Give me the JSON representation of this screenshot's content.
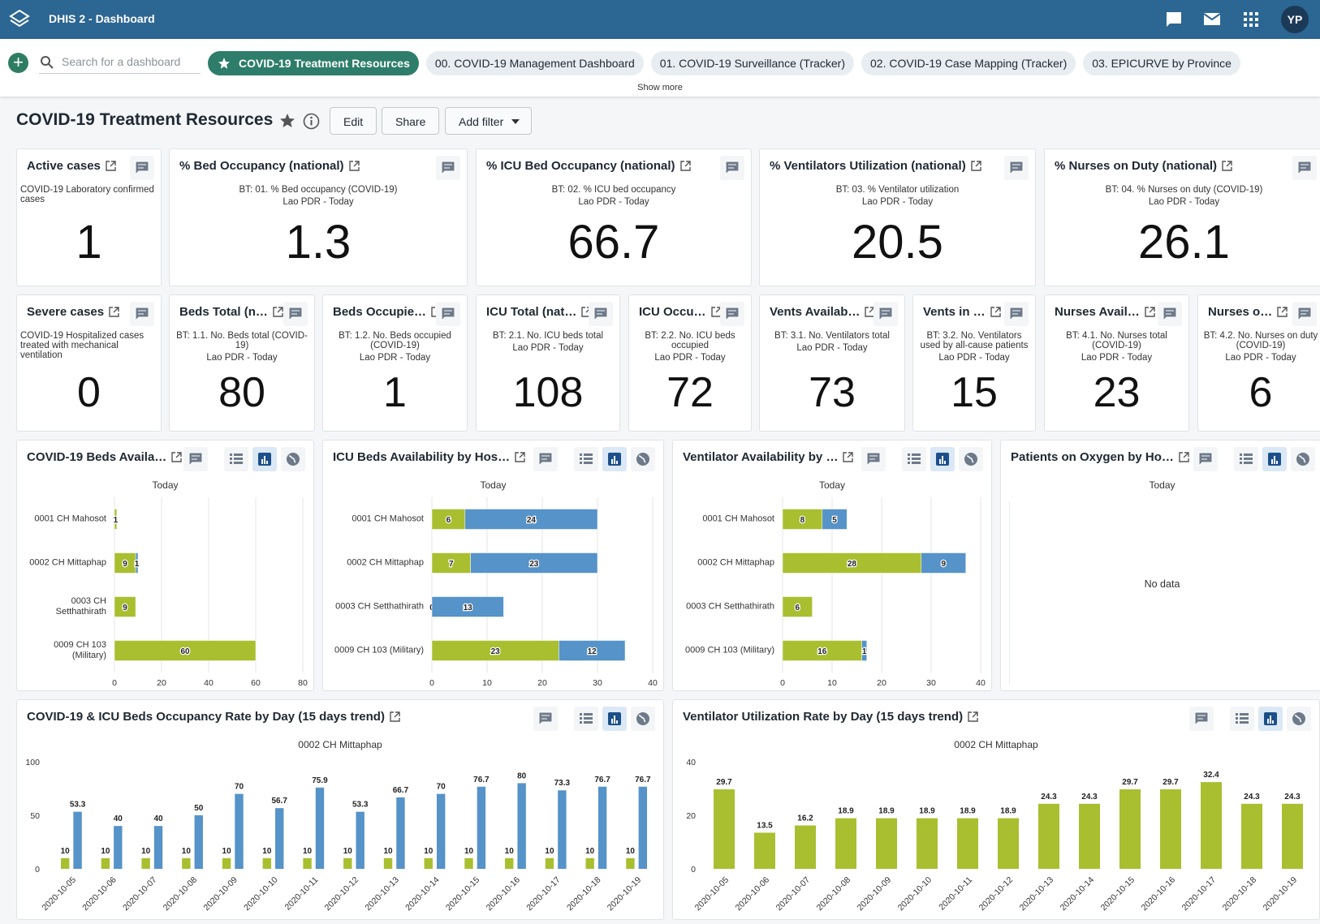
{
  "header": {
    "app_title": "DHIS 2 - Dashboard",
    "user_initials": "YP"
  },
  "dashboard_bar": {
    "search_placeholder": "Search for a dashboard",
    "dashboards": [
      "COVID-19 Treatment Resources",
      "00. COVID-19 Management Dashboard",
      "01. COVID-19 Surveillance (Tracker)",
      "02. COVID-19 Case Mapping (Tracker)",
      "03. EPICURVE by Province"
    ],
    "show_more": "Show more"
  },
  "title_bar": {
    "title": "COVID-19 Treatment Resources",
    "buttons": [
      "Edit",
      "Share",
      "Add filter"
    ]
  },
  "single_values": [
    {
      "title": "Active cases",
      "description": "COVID-19 Laboratory confirmed cases",
      "value": 1
    },
    {
      "title": "% Bed Occupancy (national)",
      "description": "BT: 01. % Bed occupancy (COVID-19)",
      "period": "Lao PDR - Today",
      "value": 1.3
    },
    {
      "title": "% ICU Bed Occupancy (national)",
      "description": "BT: 02. % ICU bed occupancy",
      "period": "Lao PDR - Today",
      "value": 66.7
    },
    {
      "title": "% Ventilators Utilization (national)",
      "description": "BT: 03. % Ventilator utilization",
      "period": "Lao PDR - Today",
      "value": 20.5
    },
    {
      "title": "% Nurses on Duty (national)",
      "description": "BT: 04. % Nurses on duty (COVID-19)",
      "period": "Lao PDR - Today",
      "value": 26.1
    },
    {
      "title": "Severe cases",
      "description": "COVID-19 Hospitalized cases treated with mechanical ventilation",
      "value": 0
    },
    {
      "title": "Beds Total (n…",
      "description": "BT: 1.1. No. Beds total (COVID-19)",
      "period": "Lao PDR - Today",
      "value": 80
    },
    {
      "title": "Beds Occupie…",
      "description": "BT: 1.2. No. Beds occupied (COVID-19)",
      "period": "Lao PDR - Today",
      "value": 1
    },
    {
      "title": "ICU Total (nat…",
      "description": "BT: 2.1. No. ICU beds total",
      "period": "Lao PDR - Today",
      "value": 108
    },
    {
      "title": "ICU Occu…",
      "description": "BT: 2.2. No. ICU beds occupied",
      "period": "Lao PDR - Today",
      "value": 72
    },
    {
      "title": "Vents Availab…",
      "description": "BT: 3.1. No. Ventilators total",
      "period": "Lao PDR - Today",
      "value": 73
    },
    {
      "title": "Vents in …",
      "description": "BT: 3.2. No. Ventilators used by all-cause patients",
      "period": "Lao PDR - Today",
      "value": 15
    },
    {
      "title": "Nurses Avail…",
      "description": "BT: 4.1. No. Nurses total (COVID-19)",
      "period": "Lao PDR - Today",
      "value": 23
    },
    {
      "title": "Nurses o…",
      "description": "BT: 4.2. No. Nurses on duty (COVID-19)",
      "period": "Lao PDR - Today",
      "value": 6
    }
  ],
  "bar_charts": [
    {
      "title": "COVID-19 Beds Availa…",
      "subtitle": "Today",
      "chart": {
        "type": "bar",
        "categories": [
          "0001 CH Mahosot",
          "0002 CH Mittaphap",
          "0003 CH Setthathirath",
          "0009 CH 103 (Military)"
        ],
        "series": [
          {
            "color": "#a9bf2f",
            "values": [
              1,
              9,
              9,
              60
            ]
          },
          {
            "color": "#5593c9",
            "values": [
              null,
              1,
              null,
              null
            ]
          }
        ],
        "xlim": [
          0,
          80
        ],
        "xticks": [
          0,
          20,
          40,
          60,
          80
        ],
        "grid": true
      }
    },
    {
      "title": "ICU Beds Availability by Hos…",
      "subtitle": "Today",
      "chart": {
        "type": "bar",
        "categories": [
          "0001 CH Mahosot",
          "0002 CH Mittaphap",
          "0003 CH Setthathirath",
          "0009 CH 103 (Military)"
        ],
        "series": [
          {
            "color": "#a9bf2f",
            "values": [
              6,
              7,
              0,
              23
            ]
          },
          {
            "color": "#5593c9",
            "values": [
              24,
              23,
              13,
              12
            ]
          }
        ],
        "xlim": [
          0,
          40
        ],
        "xticks": [
          0,
          10,
          20,
          30,
          40
        ],
        "grid": true
      }
    },
    {
      "title": "Ventilator Availability by …",
      "subtitle": "Today",
      "chart": {
        "type": "bar",
        "categories": [
          "0001 CH Mahosot",
          "0002 CH Mittaphap",
          "0003 CH Setthathirath",
          "0009 CH 103 (Military)"
        ],
        "series": [
          {
            "color": "#a9bf2f",
            "values": [
              8,
              28,
              6,
              16
            ]
          },
          {
            "color": "#5593c9",
            "values": [
              5,
              9,
              null,
              1
            ]
          }
        ],
        "xlim": [
          0,
          40
        ],
        "xticks": [
          0,
          10,
          20,
          30,
          40
        ],
        "grid": true
      }
    },
    {
      "title": "Patients on Oxygen by Ho…",
      "subtitle": "Today",
      "no_data": "No data"
    }
  ],
  "trend_charts": [
    {
      "title": "COVID-19 & ICU Beds Occupancy Rate by Day (15 days trend)",
      "subtitle": "0002 CH Mittaphap",
      "chart": {
        "type": "column",
        "categories": [
          "2020-10-05",
          "2020-10-06",
          "2020-10-07",
          "2020-10-08",
          "2020-10-09",
          "2020-10-10",
          "2020-10-11",
          "2020-10-12",
          "2020-10-13",
          "2020-10-14",
          "2020-10-15",
          "2020-10-16",
          "2020-10-17",
          "2020-10-18",
          "2020-10-19"
        ],
        "series": [
          {
            "color": "#a9bf2f",
            "values": [
              10,
              10,
              10,
              10,
              10,
              10,
              10,
              10,
              10,
              10,
              10,
              10,
              10,
              10,
              10
            ]
          },
          {
            "color": "#5593c9",
            "values": [
              53.3,
              40,
              40,
              50,
              70,
              56.7,
              75.9,
              53.3,
              66.7,
              70,
              76.7,
              80,
              73.3,
              76.7,
              76.7
            ]
          }
        ],
        "ylim": [
          0,
          100
        ],
        "yticks": [
          0,
          50,
          100
        ],
        "grid": false
      }
    },
    {
      "title": "Ventilator Utilization Rate by Day (15 days trend)",
      "subtitle": "0002 CH Mittaphap",
      "chart": {
        "type": "column",
        "categories": [
          "2020-10-05",
          "2020-10-06",
          "2020-10-07",
          "2020-10-08",
          "2020-10-09",
          "2020-10-10",
          "2020-10-11",
          "2020-10-12",
          "2020-10-13",
          "2020-10-14",
          "2020-10-15",
          "2020-10-16",
          "2020-10-17",
          "2020-10-18",
          "2020-10-19"
        ],
        "series": [
          {
            "color": "#a9bf2f",
            "values": [
              29.7,
              13.5,
              16.2,
              18.9,
              18.9,
              18.9,
              18.9,
              18.9,
              24.3,
              24.3,
              29.7,
              29.7,
              32.4,
              24.3,
              24.3
            ]
          }
        ],
        "ylim": [
          0,
          40
        ],
        "yticks": [
          0,
          20,
          40
        ],
        "grid": false
      }
    }
  ]
}
